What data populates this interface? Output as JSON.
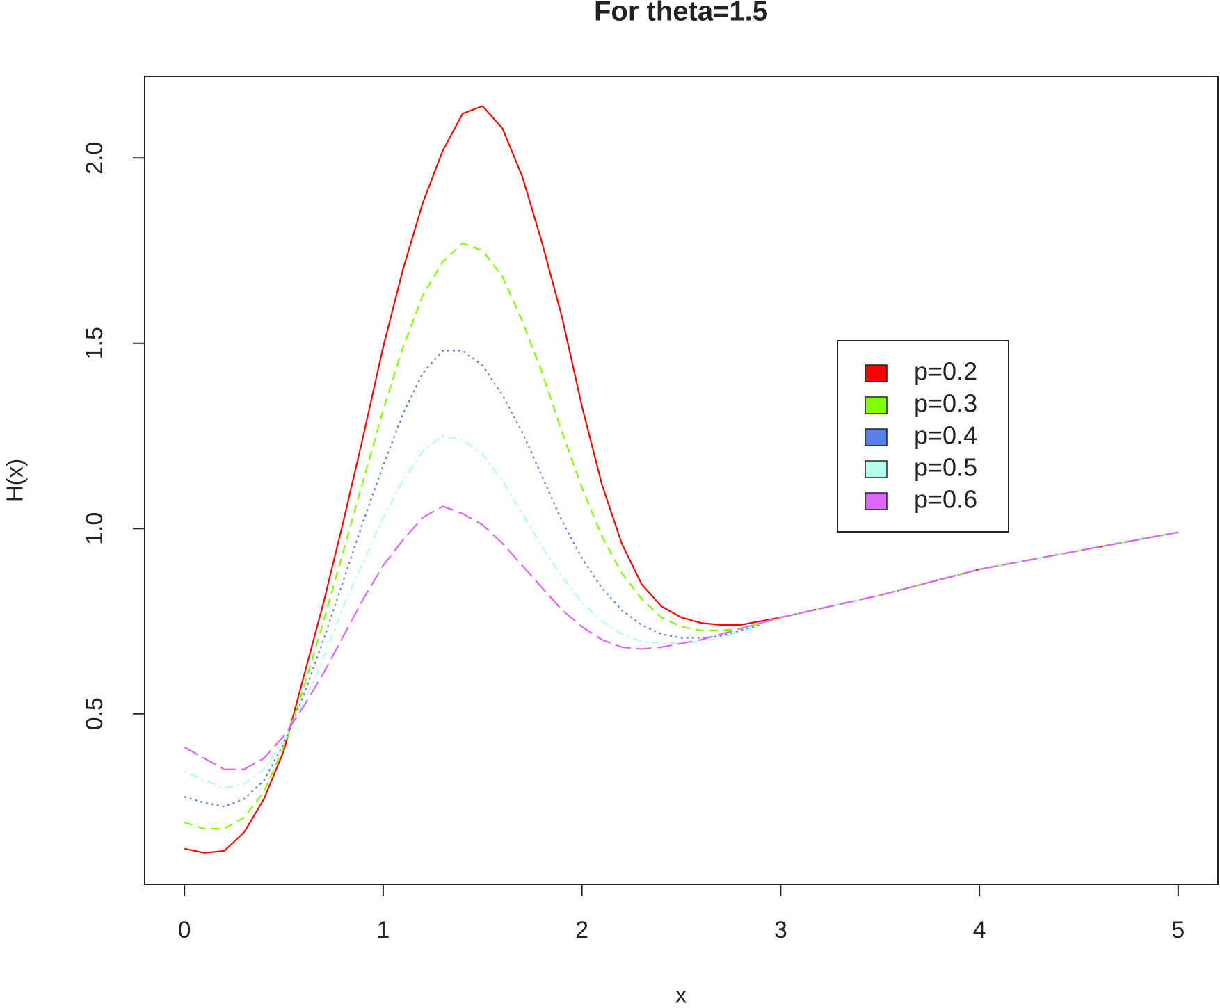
{
  "chart_data": {
    "type": "line",
    "title": "For theta=1.5",
    "x_label": "x",
    "y_label": "H(x)",
    "x": [
      0,
      0.1,
      0.2,
      0.3,
      0.4,
      0.5,
      0.6,
      0.7,
      0.8,
      0.9,
      1.0,
      1.1,
      1.2,
      1.3,
      1.4,
      1.5,
      1.6,
      1.7,
      1.8,
      1.9,
      2.0,
      2.1,
      2.2,
      2.3,
      2.4,
      2.5,
      2.6,
      2.7,
      2.8,
      2.9,
      3.0,
      3.5,
      4.0,
      4.5,
      5.0
    ],
    "series": [
      {
        "name": "p=0.2",
        "color": "#ff0000",
        "linestyle": "solid",
        "values": [
          0.136,
          0.125,
          0.13,
          0.18,
          0.27,
          0.4,
          0.6,
          0.8,
          1.02,
          1.25,
          1.49,
          1.7,
          1.88,
          2.02,
          2.12,
          2.14,
          2.08,
          1.95,
          1.77,
          1.57,
          1.33,
          1.12,
          0.96,
          0.85,
          0.79,
          0.76,
          0.745,
          0.74,
          0.74,
          0.75,
          0.76,
          0.82,
          0.89,
          0.94,
          0.99
        ]
      },
      {
        "name": "p=0.3",
        "color": "#80ff00",
        "linestyle": "dashed",
        "values": [
          0.207,
          0.19,
          0.19,
          0.22,
          0.29,
          0.41,
          0.57,
          0.75,
          0.94,
          1.13,
          1.32,
          1.49,
          1.63,
          1.72,
          1.77,
          1.75,
          1.68,
          1.56,
          1.42,
          1.26,
          1.11,
          0.98,
          0.88,
          0.81,
          0.76,
          0.735,
          0.725,
          0.725,
          0.73,
          0.745,
          0.76,
          0.82,
          0.89,
          0.94,
          0.99
        ]
      },
      {
        "name": "p=0.4",
        "color": "#5a7fe6",
        "linestyle": "dotted",
        "values": [
          0.276,
          0.26,
          0.25,
          0.27,
          0.32,
          0.42,
          0.55,
          0.7,
          0.86,
          1.02,
          1.17,
          1.31,
          1.42,
          1.48,
          1.48,
          1.44,
          1.36,
          1.26,
          1.14,
          1.02,
          0.92,
          0.84,
          0.78,
          0.74,
          0.715,
          0.705,
          0.705,
          0.71,
          0.725,
          0.74,
          0.76,
          0.82,
          0.89,
          0.94,
          0.99
        ]
      },
      {
        "name": "p=0.5",
        "color": "#b3ffee",
        "linestyle": "dotdash",
        "values": [
          0.345,
          0.32,
          0.3,
          0.31,
          0.35,
          0.43,
          0.53,
          0.65,
          0.79,
          0.91,
          1.03,
          1.13,
          1.21,
          1.25,
          1.24,
          1.2,
          1.13,
          1.04,
          0.95,
          0.87,
          0.8,
          0.75,
          0.715,
          0.695,
          0.69,
          0.69,
          0.695,
          0.705,
          0.72,
          0.74,
          0.76,
          0.82,
          0.89,
          0.94,
          0.99
        ]
      },
      {
        "name": "p=0.6",
        "color": "#dd66ff",
        "linestyle": "longdash",
        "values": [
          0.41,
          0.38,
          0.35,
          0.35,
          0.38,
          0.44,
          0.52,
          0.61,
          0.71,
          0.81,
          0.9,
          0.97,
          1.03,
          1.06,
          1.04,
          1.01,
          0.96,
          0.9,
          0.84,
          0.78,
          0.735,
          0.7,
          0.68,
          0.675,
          0.68,
          0.69,
          0.7,
          0.715,
          0.73,
          0.745,
          0.76,
          0.82,
          0.89,
          0.94,
          0.99
        ]
      }
    ],
    "xlim": [
      -0.2,
      5.2
    ],
    "ylim": [
      0.04,
      2.22
    ],
    "xticks": [
      0,
      1,
      2,
      3,
      4,
      5
    ],
    "yticks": [
      0.5,
      {
        "value": 1.0,
        "label": "1.0"
      },
      1.5,
      {
        "value": 2.0,
        "label": "2.0"
      }
    ],
    "legend": "right",
    "grid": false
  }
}
